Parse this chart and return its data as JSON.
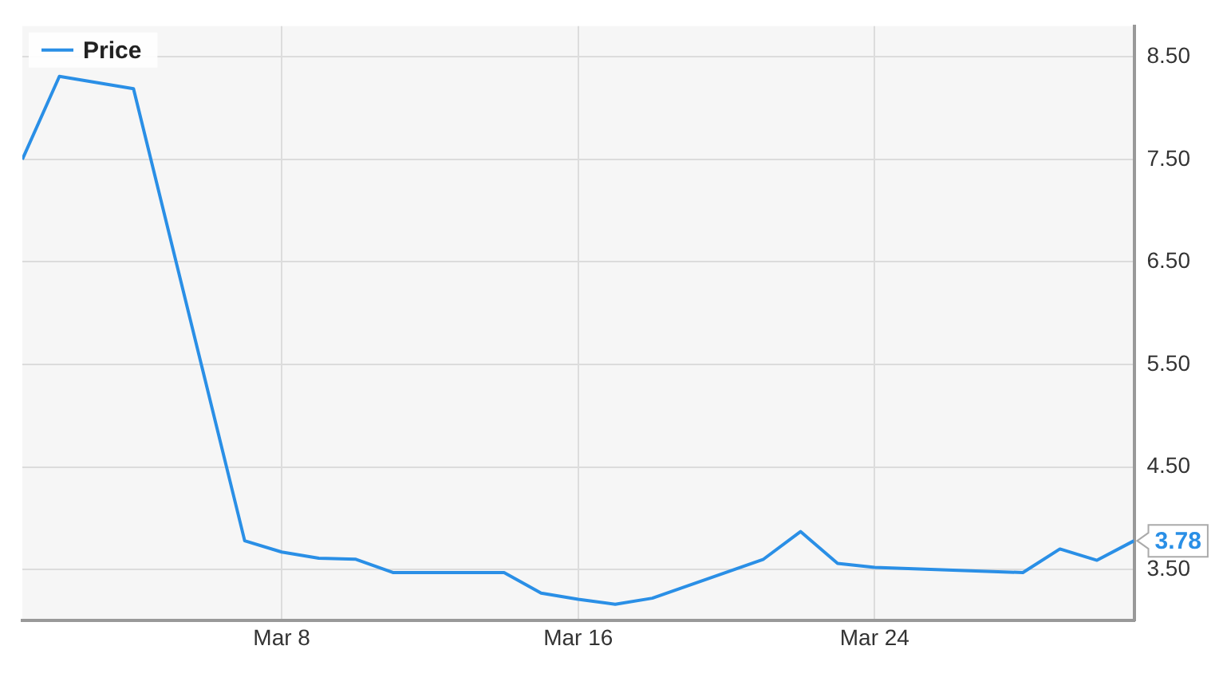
{
  "chart_data": {
    "type": "line",
    "x": [
      "--03-01",
      "--03-02",
      "--03-04",
      "--03-07",
      "--03-08",
      "--03-09",
      "--03-10",
      "--03-11",
      "--03-14",
      "--03-15",
      "--03-16",
      "--03-17",
      "--03-18",
      "--03-21",
      "--03-22",
      "--03-23",
      "--03-24",
      "--03-28",
      "--03-29",
      "--03-30",
      "--03-31"
    ],
    "series": [
      {
        "name": "Price",
        "color": "#2a8fe6",
        "values": [
          7.5,
          8.31,
          8.19,
          3.78,
          3.67,
          3.61,
          3.6,
          3.47,
          3.47,
          3.27,
          3.21,
          3.16,
          3.22,
          3.6,
          3.87,
          3.56,
          3.52,
          3.47,
          3.7,
          3.59,
          3.78
        ]
      }
    ],
    "xlim": [
      "--03-01",
      "--03-31"
    ],
    "xticks": [
      {
        "value": "--03-08",
        "label": "Mar 8"
      },
      {
        "value": "--03-16",
        "label": "Mar 16"
      },
      {
        "value": "--03-24",
        "label": "Mar 24"
      }
    ],
    "ylim": [
      3.0,
      8.8
    ],
    "yticks": [
      {
        "value": 3.5,
        "label": "3.50"
      },
      {
        "value": 4.5,
        "label": "4.50"
      },
      {
        "value": 5.5,
        "label": "5.50"
      },
      {
        "value": 6.5,
        "label": "6.50"
      },
      {
        "value": 7.5,
        "label": "7.50"
      },
      {
        "value": 8.5,
        "label": "8.50"
      }
    ],
    "annotations": [
      {
        "text": "3.78",
        "x": "--03-31",
        "y": 3.78
      }
    ],
    "grid": true,
    "legend": "top left",
    "marker": "none",
    "line_style": "solid"
  }
}
